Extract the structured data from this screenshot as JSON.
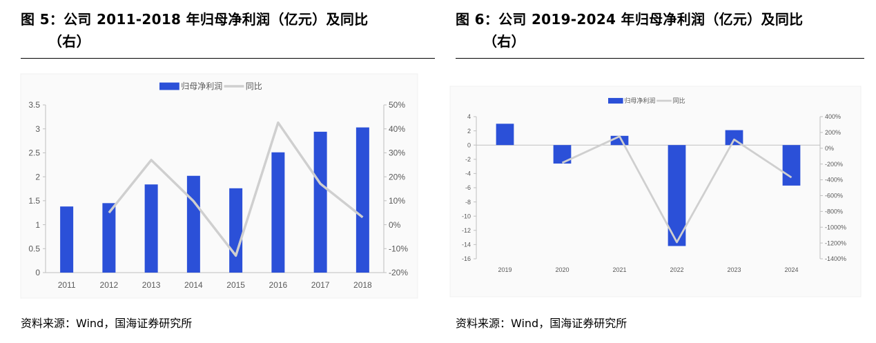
{
  "charts_meta": [
    {
      "title_line1": "图 5：公司 2011-2018 年归母净利润（亿元）及同比",
      "title_line2": "（右）",
      "source": "资料来源：Wind，国海证券研究所"
    },
    {
      "title_line1": "图 6：公司 2019-2024 年归母净利润（亿元）及同比",
      "title_line2": "（右）",
      "source": "资料来源：Wind，国海证券研究所"
    }
  ],
  "chart_data": [
    {
      "type": "bar",
      "categories": [
        "2011",
        "2012",
        "2013",
        "2014",
        "2015",
        "2016",
        "2017",
        "2018"
      ],
      "series": [
        {
          "name": "归母净利润",
          "type": "bar",
          "axis": "left",
          "color": "#2b50d8",
          "values": [
            1.38,
            1.45,
            1.84,
            2.02,
            1.76,
            2.51,
            2.94,
            3.03
          ]
        },
        {
          "name": "同比",
          "type": "line",
          "axis": "right",
          "color": "#cfcfcf",
          "values": [
            null,
            5,
            27,
            9.8,
            -12.9,
            42.6,
            17.1,
            3.1
          ]
        }
      ],
      "left_ticks": [
        "3.5",
        "3",
        "2.5",
        "2",
        "1.5",
        "1",
        "0.5",
        "0"
      ],
      "right_ticks": [
        "50%",
        "40%",
        "30%",
        "20%",
        "10%",
        "0%",
        "-10%",
        "-20%"
      ],
      "ylim_left": [
        0,
        3.5
      ],
      "ylim_right": [
        -20,
        50
      ],
      "legend_position": "top-center",
      "grid": false
    },
    {
      "type": "bar",
      "categories": [
        "2019",
        "2020",
        "2021",
        "2022",
        "2023",
        "2024"
      ],
      "series": [
        {
          "name": "归母净利润",
          "type": "bar",
          "axis": "left",
          "color": "#2b50d8",
          "values": [
            3.0,
            -2.6,
            1.3,
            -14.2,
            2.1,
            -5.7
          ]
        },
        {
          "name": "同比",
          "type": "line",
          "axis": "right",
          "color": "#cfcfcf",
          "values": [
            null,
            -185,
            150,
            -1190,
            110,
            -370
          ]
        }
      ],
      "left_ticks": [
        "4",
        "2",
        "0",
        "-2",
        "-4",
        "-6",
        "-8",
        "-10",
        "-12",
        "-14",
        "-16"
      ],
      "right_ticks": [
        "400%",
        "200%",
        "0%",
        "-200%",
        "-400%",
        "-600%",
        "-800%",
        "-1000%",
        "-1200%",
        "-1400%"
      ],
      "ylim_left": [
        -16,
        4
      ],
      "ylim_right": [
        -1400,
        400
      ],
      "legend_position": "top-center",
      "grid": false
    }
  ]
}
